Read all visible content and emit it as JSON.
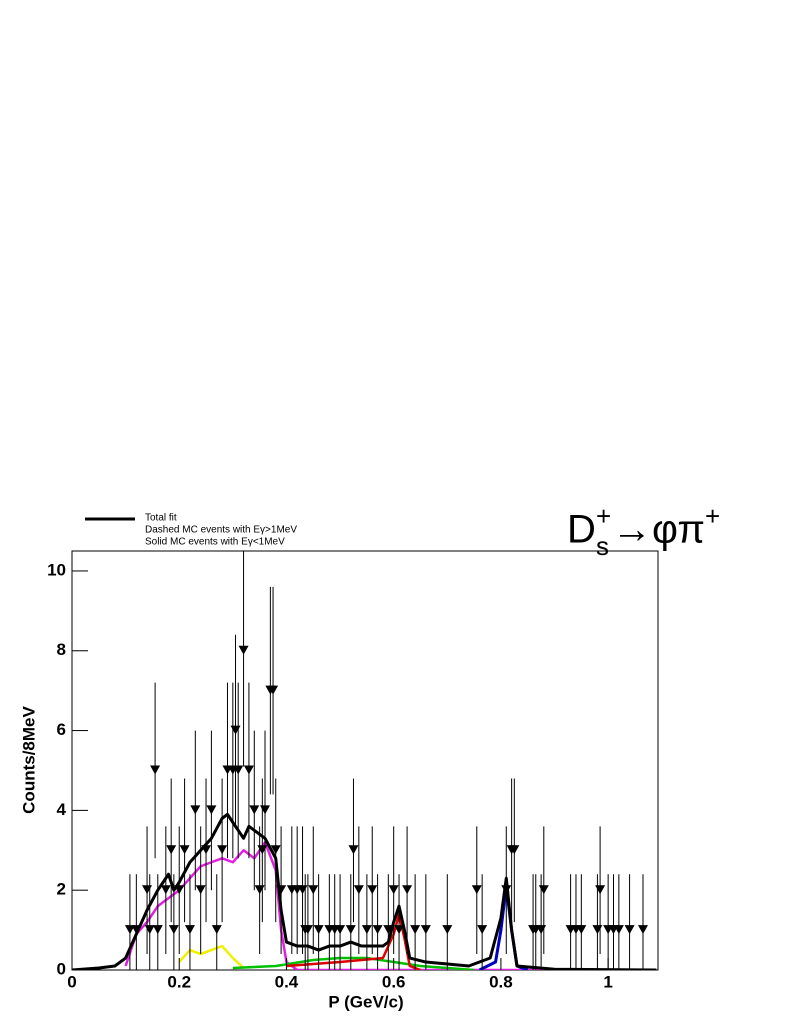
{
  "chart_data": {
    "type": "line",
    "annotation": [
      "D",
      "s",
      "+",
      "→φπ",
      "+"
    ],
    "legend": [
      "Total fit",
      "Dashed MC events with Eγ>1MeV",
      "Solid MC events with Eγ<1MeV"
    ],
    "x_label": "P (GeV/c)",
    "y_label": "Counts/8MeV",
    "xlim": [
      0,
      1.093
    ],
    "ylim": [
      0,
      10.5
    ],
    "xticks": [
      0,
      0.2,
      0.4,
      0.6,
      0.8,
      1
    ],
    "yticks": [
      0,
      2,
      4,
      6,
      8,
      10
    ],
    "series": [
      {
        "color": "#e020e0",
        "width": 2.5,
        "x": [
          0.1,
          0.12,
          0.14,
          0.16,
          0.18,
          0.2,
          0.22,
          0.24,
          0.26,
          0.28,
          0.3,
          0.32,
          0.34,
          0.36,
          0.38,
          0.39,
          0.4,
          0.42,
          1.09
        ],
        "values": [
          0.1,
          0.9,
          1.2,
          1.6,
          1.8,
          2.0,
          2.3,
          2.6,
          2.7,
          2.8,
          2.7,
          3.0,
          2.8,
          3.2,
          2.5,
          1.0,
          0.2,
          0,
          0
        ]
      },
      {
        "color": "#f0f000",
        "width": 2.5,
        "x": [
          0.2,
          0.22,
          0.24,
          0.26,
          0.28,
          0.3,
          0.32
        ],
        "values": [
          0.2,
          0.5,
          0.4,
          0.5,
          0.6,
          0.3,
          0.05
        ]
      },
      {
        "color": "#00c000",
        "width": 2.5,
        "x": [
          0.3,
          0.38,
          0.45,
          0.5,
          0.55,
          0.6,
          0.65,
          0.7,
          0.75
        ],
        "values": [
          0.05,
          0.1,
          0.25,
          0.3,
          0.3,
          0.2,
          0.1,
          0.05,
          0
        ]
      },
      {
        "color": "#e00000",
        "width": 2.5,
        "x": [
          0.4,
          0.5,
          0.58,
          0.6,
          0.61,
          0.62,
          0.63,
          0.65
        ],
        "values": [
          0.1,
          0.2,
          0.3,
          0.9,
          1.4,
          0.8,
          0.1,
          0
        ]
      },
      {
        "color": "#0000c0",
        "width": 3,
        "x": [
          0.76,
          0.79,
          0.8,
          0.81,
          0.82,
          0.83,
          0.85
        ],
        "values": [
          0,
          0.2,
          1.0,
          2.1,
          1.0,
          0.1,
          0
        ]
      },
      {
        "color": "#000000",
        "width": 3,
        "x": [
          0,
          0.05,
          0.08,
          0.1,
          0.12,
          0.14,
          0.16,
          0.18,
          0.19,
          0.2,
          0.22,
          0.24,
          0.26,
          0.28,
          0.29,
          0.3,
          0.32,
          0.33,
          0.34,
          0.36,
          0.38,
          0.39,
          0.4,
          0.42,
          0.44,
          0.46,
          0.48,
          0.5,
          0.52,
          0.54,
          0.56,
          0.58,
          0.59,
          0.6,
          0.61,
          0.62,
          0.63,
          0.66,
          0.7,
          0.74,
          0.78,
          0.8,
          0.81,
          0.82,
          0.83,
          0.9,
          1.09
        ],
        "values": [
          0,
          0.05,
          0.1,
          0.3,
          0.9,
          1.5,
          2,
          2.4,
          2.0,
          2.2,
          2.7,
          3.0,
          3.3,
          3.8,
          3.9,
          3.7,
          3.3,
          3.6,
          3.5,
          3.3,
          2.8,
          1.5,
          0.7,
          0.6,
          0.6,
          0.5,
          0.6,
          0.6,
          0.7,
          0.6,
          0.6,
          0.6,
          0.7,
          1.2,
          1.6,
          1.0,
          0.3,
          0.2,
          0.15,
          0.1,
          0.3,
          1.3,
          2.3,
          1.0,
          0.1,
          0.02,
          0
        ]
      }
    ],
    "points": {
      "color": "#000000",
      "x": [
        0.108,
        0.12,
        0.14,
        0.145,
        0.155,
        0.16,
        0.175,
        0.185,
        0.19,
        0.2,
        0.21,
        0.22,
        0.23,
        0.24,
        0.25,
        0.26,
        0.27,
        0.28,
        0.29,
        0.3,
        0.305,
        0.31,
        0.32,
        0.33,
        0.34,
        0.35,
        0.355,
        0.36,
        0.37,
        0.375,
        0.38,
        0.39,
        0.41,
        0.42,
        0.43,
        0.435,
        0.44,
        0.45,
        0.46,
        0.48,
        0.49,
        0.5,
        0.52,
        0.525,
        0.535,
        0.55,
        0.56,
        0.57,
        0.59,
        0.6,
        0.61,
        0.625,
        0.64,
        0.66,
        0.7,
        0.755,
        0.765,
        0.81,
        0.82,
        0.825,
        0.86,
        0.865,
        0.875,
        0.88,
        0.93,
        0.94,
        0.95,
        0.98,
        0.985,
        1.0,
        1.01,
        1.02,
        1.04,
        1.065
      ],
      "values": [
        1,
        1,
        2,
        1,
        5,
        1,
        2,
        3,
        1,
        2,
        3,
        1,
        4,
        2,
        3,
        4,
        1,
        3,
        5,
        5,
        6,
        5,
        8,
        5,
        4,
        2,
        3,
        4,
        7,
        7,
        3,
        2,
        2,
        2,
        2,
        1,
        1,
        2,
        1,
        1,
        1,
        1,
        1,
        3,
        2,
        1,
        2,
        1,
        1,
        2,
        1,
        2,
        1,
        1,
        1,
        2,
        1,
        2,
        3,
        3,
        1,
        1,
        1,
        2,
        1,
        1,
        1,
        1,
        2,
        1,
        1,
        1,
        1,
        1
      ],
      "errors": [
        1.4,
        1.4,
        1.6,
        1.4,
        2.2,
        1.4,
        1.6,
        1.8,
        1.4,
        1.6,
        1.8,
        1.4,
        2,
        1.6,
        1.8,
        2,
        1.4,
        1.8,
        2.2,
        2.2,
        2.4,
        2.2,
        2.9,
        2.2,
        2,
        1.6,
        1.8,
        2,
        2.6,
        2.6,
        1.8,
        1.6,
        1.6,
        1.6,
        1.6,
        1.4,
        1.4,
        1.6,
        1.4,
        1.4,
        1.4,
        1.4,
        1.4,
        1.8,
        1.6,
        1.4,
        1.6,
        1.4,
        1.4,
        1.6,
        1.4,
        1.6,
        1.4,
        1.4,
        1.4,
        1.6,
        1.4,
        1.6,
        1.8,
        1.8,
        1.4,
        1.4,
        1.4,
        1.6,
        1.4,
        1.4,
        1.4,
        1.4,
        1.6,
        1.4,
        1.4,
        1.4,
        1.4,
        1.4
      ]
    }
  }
}
